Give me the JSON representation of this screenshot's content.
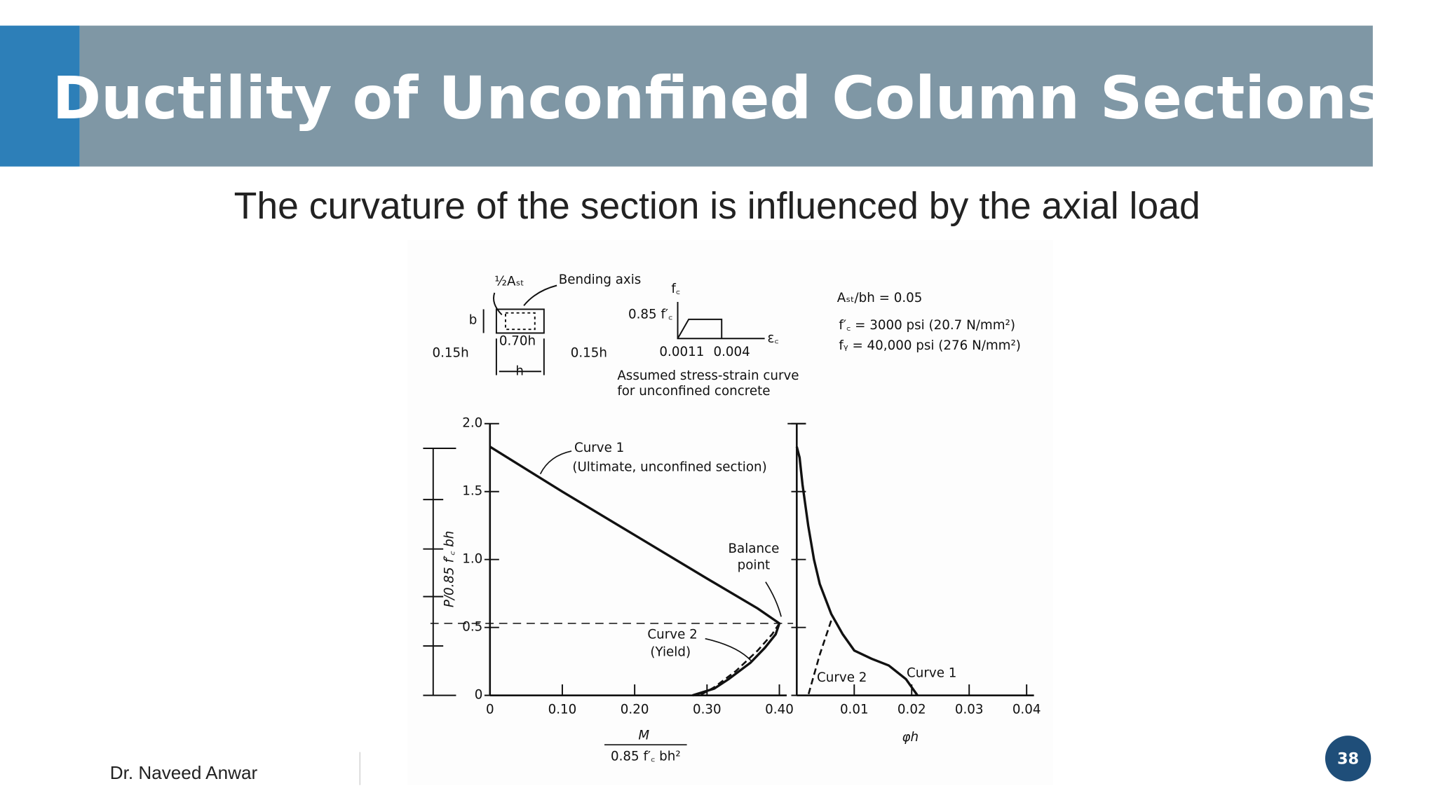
{
  "slide": {
    "title": "Ductility of Unconfined Column Sections",
    "subtitle": "The curvature of the section is influenced by the axial load",
    "author": "Dr. Naveed Anwar",
    "page_number": "38"
  },
  "figure": {
    "half_ast": "½Aₛₜ",
    "bending_axis": "Bending axis",
    "b": "b",
    "w070h": "0.70h",
    "left015h": "0.15h",
    "right015h": "0.15h",
    "h": "h",
    "fc": "f꜀",
    "fc085": "0.85 f′꜀",
    "strain1": "0.0011",
    "strain2": "0.004",
    "ec": "ε꜀",
    "caption1": "Assumed stress-strain curve",
    "caption2": "for unconfined concrete",
    "ratio": "Aₛₜ/bh = 0.05",
    "fc_value": "f′꜀ = 3000 psi (20.7 N/mm²)",
    "fy_value": "fᵧ = 40,000 psi (276 N/mm²)"
  },
  "chart_data": [
    {
      "type": "line",
      "x_label_top": "M",
      "x_label_bottom": "0.85 f′꜀ bh²",
      "y_label": "P/0.85 f′꜀ bh",
      "xlim": [
        0,
        0.4
      ],
      "ylim": [
        0,
        2
      ],
      "xticks": [
        0,
        {
          "value": 0.1,
          "label": "0.10"
        },
        {
          "value": 0.2,
          "label": "0.20"
        },
        {
          "value": 0.3,
          "label": "0.30"
        },
        {
          "value": 0.4,
          "label": "0.40"
        }
      ],
      "yticks": [
        0,
        0.5,
        {
          "value": 1,
          "label": "1.0"
        },
        1.5,
        {
          "value": 2,
          "label": "2.0"
        }
      ],
      "show_ytick_labels": true,
      "annotations": {
        "ultimate": "(Ultimate, unconfined section)",
        "yield": "(Yield)",
        "balance": "Balance point"
      },
      "series": [
        {
          "name": "Curve 1",
          "color": "#111111",
          "style": "solid",
          "x": [
            0,
            0.1,
            0.2,
            0.3,
            0.37,
            0.4,
            0.395,
            0.38,
            0.36,
            0.33,
            0.31,
            0.28
          ],
          "values": [
            1.83,
            1.5,
            1.18,
            0.86,
            0.64,
            0.53,
            0.45,
            0.35,
            0.24,
            0.12,
            0.05,
            0
          ]
        },
        {
          "name": "Curve 2",
          "color": "#111111",
          "style": "dashed",
          "x": [
            0.4,
            0.39,
            0.37,
            0.34,
            0.31,
            0.29
          ],
          "values": [
            0.53,
            0.45,
            0.33,
            0.18,
            0.06,
            0
          ]
        }
      ]
    },
    {
      "type": "line",
      "x_label": "φh",
      "xlim": [
        0,
        0.04
      ],
      "ylim": [
        0,
        2
      ],
      "xticks": [
        0.01,
        0.02,
        0.03,
        0.04
      ],
      "yticks": [
        0,
        0.5,
        1,
        1.5,
        2
      ],
      "show_ytick_labels": false,
      "series": [
        {
          "name": "Curve 1",
          "color": "#111111",
          "style": "solid",
          "x": [
            0,
            0.0005,
            0.001,
            0.002,
            0.003,
            0.004,
            0.006,
            0.008,
            0.01,
            0.013,
            0.016,
            0.019,
            0.021
          ],
          "values": [
            1.83,
            1.75,
            1.55,
            1.25,
            1,
            0.82,
            0.6,
            0.45,
            0.33,
            0.27,
            0.22,
            0.12,
            0
          ]
        },
        {
          "name": "Curve 2",
          "color": "#111111",
          "style": "dashed",
          "x": [
            0.006,
            0.004,
            0.002
          ],
          "values": [
            0.55,
            0.3,
            0
          ]
        }
      ]
    }
  ]
}
